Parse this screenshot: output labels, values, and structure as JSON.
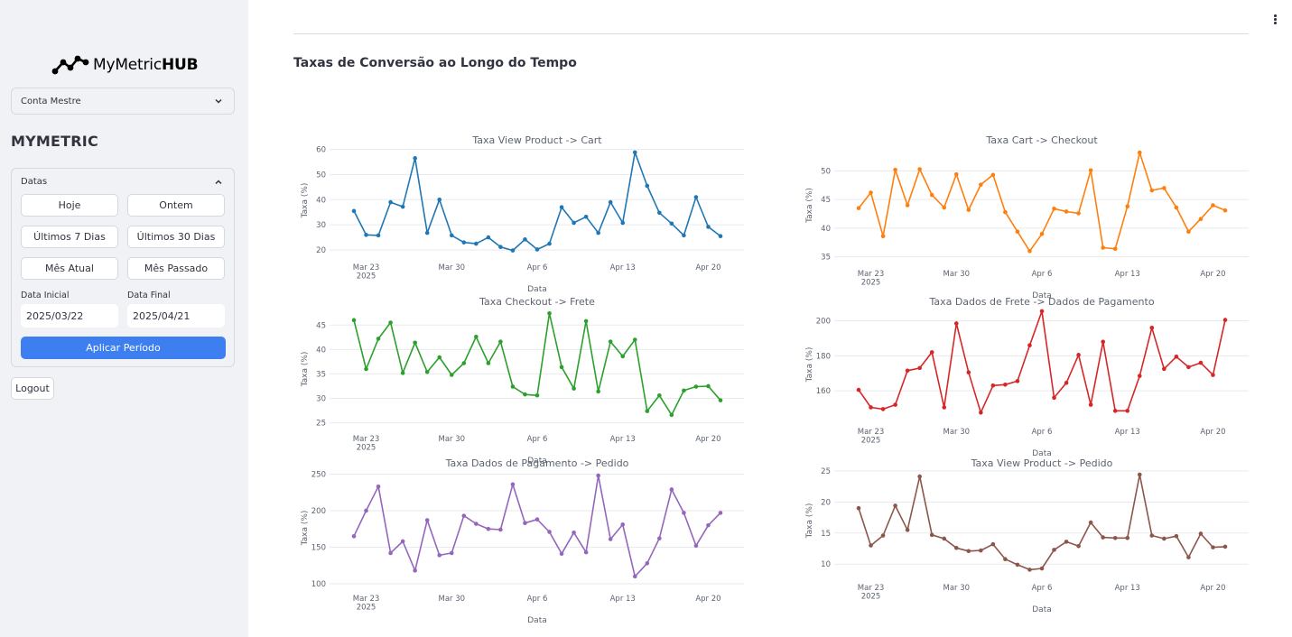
{
  "sidebar": {
    "logo_text_regular": "MyMetric",
    "logo_text_bold": "HUB",
    "account_select_value": "Conta Mestre",
    "brand_title": "MYMETRIC",
    "dates_expander_label": "Datas",
    "buttons": {
      "today": "Hoje",
      "yesterday": "Ontem",
      "last7": "Últimos 7 Dias",
      "last30": "Últimos 30 Dias",
      "current_month": "Mês Atual",
      "last_month": "Mês Passado"
    },
    "start_date_label": "Data Inicial",
    "start_date_value": "2025/03/22",
    "end_date_label": "Data Final",
    "end_date_value": "2025/04/21",
    "apply_button": "Aplicar Período",
    "logout_button": "Logout"
  },
  "main": {
    "page_title": "Taxas de Conversão ao Longo do Tempo"
  },
  "chart_data": [
    {
      "type": "line",
      "title": "Taxa View Product -> Cart",
      "xlabel": "Data",
      "ylabel": "Taxa (%)",
      "color": "#1f77b4",
      "x_ticks": [
        "Mar 23\n2025",
        "Mar 30",
        "Apr 6",
        "Apr 13",
        "Apr 20"
      ],
      "x_start": "2025-03-22",
      "y_ticks": [
        20,
        30,
        40,
        50,
        60
      ],
      "ylim": [
        17.5,
        62
      ],
      "values": [
        35.5,
        26,
        25.8,
        39,
        37.2,
        56.5,
        26.8,
        40,
        25.8,
        23,
        22.5,
        25,
        21.2,
        19.8,
        24.2,
        20.2,
        22.5,
        37,
        30.8,
        33.2,
        26.8,
        39,
        30.8,
        58.8,
        45.5,
        34.8,
        30.5,
        25.8,
        41,
        29.2,
        25.5
      ]
    },
    {
      "type": "line",
      "title": "Taxa Cart -> Checkout",
      "xlabel": "Data",
      "ylabel": "Taxa (%)",
      "color": "#ff7f0e",
      "x_ticks": [
        "Mar 23\n2025",
        "Mar 30",
        "Apr 6",
        "Apr 13",
        "Apr 20"
      ],
      "x_start": "2025-03-22",
      "y_ticks": [
        35,
        40,
        45,
        50
      ],
      "ylim": [
        34,
        54
      ],
      "values": [
        43.5,
        46.2,
        38.6,
        50.2,
        44,
        50.3,
        45.8,
        43.6,
        49.4,
        43.2,
        47.6,
        49.3,
        42.8,
        39.4,
        36,
        39,
        43.4,
        42.9,
        42.6,
        50.1,
        36.6,
        36.4,
        43.8,
        53.2,
        46.6,
        47.0,
        43.6,
        39.4,
        41.6,
        44.0,
        43.1
      ]
    },
    {
      "type": "line",
      "title": "Taxa Checkout -> Frete",
      "xlabel": "Data",
      "ylabel": "Taxa (%)",
      "color": "#2ca02c",
      "x_ticks": [
        "Mar 23\n2025",
        "Mar 30",
        "Apr 6",
        "Apr 13",
        "Apr 20"
      ],
      "x_start": "2025-03-22",
      "y_ticks": [
        25,
        30,
        35,
        40,
        45
      ],
      "ylim": [
        24,
        48
      ],
      "values": [
        46,
        36,
        42.2,
        45.5,
        35.2,
        41.4,
        35.4,
        38.4,
        34.8,
        37.2,
        42.6,
        37.2,
        41.6,
        32.4,
        30.8,
        30.6,
        47.4,
        36.4,
        32,
        45.8,
        31.4,
        41.6,
        38.6,
        42,
        27.4,
        30.6,
        26.6,
        31.6,
        32.4,
        32.5,
        29.6
      ]
    },
    {
      "type": "line",
      "title": "Taxa Dados de Frete -> Dados de Pagamento",
      "xlabel": "Data",
      "ylabel": "Taxa (%)",
      "color": "#d62728",
      "x_ticks": [
        "Mar 23\n2025",
        "Mar 30",
        "Apr 6",
        "Apr 13",
        "Apr 20"
      ],
      "x_start": "2025-03-22",
      "y_ticks": [
        160,
        180,
        200
      ],
      "ylim": [
        143,
        207
      ],
      "values": [
        160.5,
        150.5,
        149.5,
        152,
        171.5,
        173,
        182,
        150.5,
        198.5,
        170.5,
        147.5,
        163,
        163.5,
        165.5,
        186,
        205.5,
        156,
        164.5,
        180.5,
        152,
        188,
        148.5,
        148.5,
        168.5,
        196,
        172.5,
        179.5,
        173.5,
        176,
        169,
        200.5
      ]
    },
    {
      "type": "line",
      "title": "Taxa Dados de Pagamento -> Pedido",
      "xlabel": "Data",
      "ylabel": "Taxa (%)",
      "color": "#9467bd",
      "x_ticks": [
        "Mar 23\n2025",
        "Mar 30",
        "Apr 6",
        "Apr 13",
        "Apr 20"
      ],
      "x_start": "2025-03-22",
      "y_ticks": [
        100,
        150,
        200,
        250
      ],
      "ylim": [
        95,
        258
      ],
      "values": [
        165,
        200,
        233,
        142,
        158,
        118,
        187,
        139,
        142,
        193,
        182,
        175,
        174,
        236,
        183,
        188,
        171,
        141,
        170,
        143,
        248,
        161,
        181,
        110,
        128,
        162,
        229,
        197,
        152,
        180,
        197
      ]
    },
    {
      "type": "line",
      "title": "Taxa View Product -> Pedido",
      "xlabel": "Data",
      "ylabel": "Taxa (%)",
      "color": "#8c564b",
      "x_ticks": [
        "Mar 23\n2025",
        "Mar 30",
        "Apr 6",
        "Apr 13",
        "Apr 20"
      ],
      "x_start": "2025-03-22",
      "y_ticks": [
        10,
        15,
        20,
        25
      ],
      "ylim": [
        8,
        26
      ],
      "values": [
        19,
        13,
        14.6,
        19.4,
        15.5,
        24.1,
        14.7,
        14.1,
        12.6,
        12.1,
        12.2,
        13.2,
        10.8,
        9.9,
        9.1,
        9.3,
        12.3,
        13.6,
        12.9,
        16.7,
        14.3,
        14.2,
        14.2,
        24.4,
        14.6,
        14.1,
        14.5,
        11.1,
        14.9,
        12.7,
        12.8
      ]
    }
  ]
}
